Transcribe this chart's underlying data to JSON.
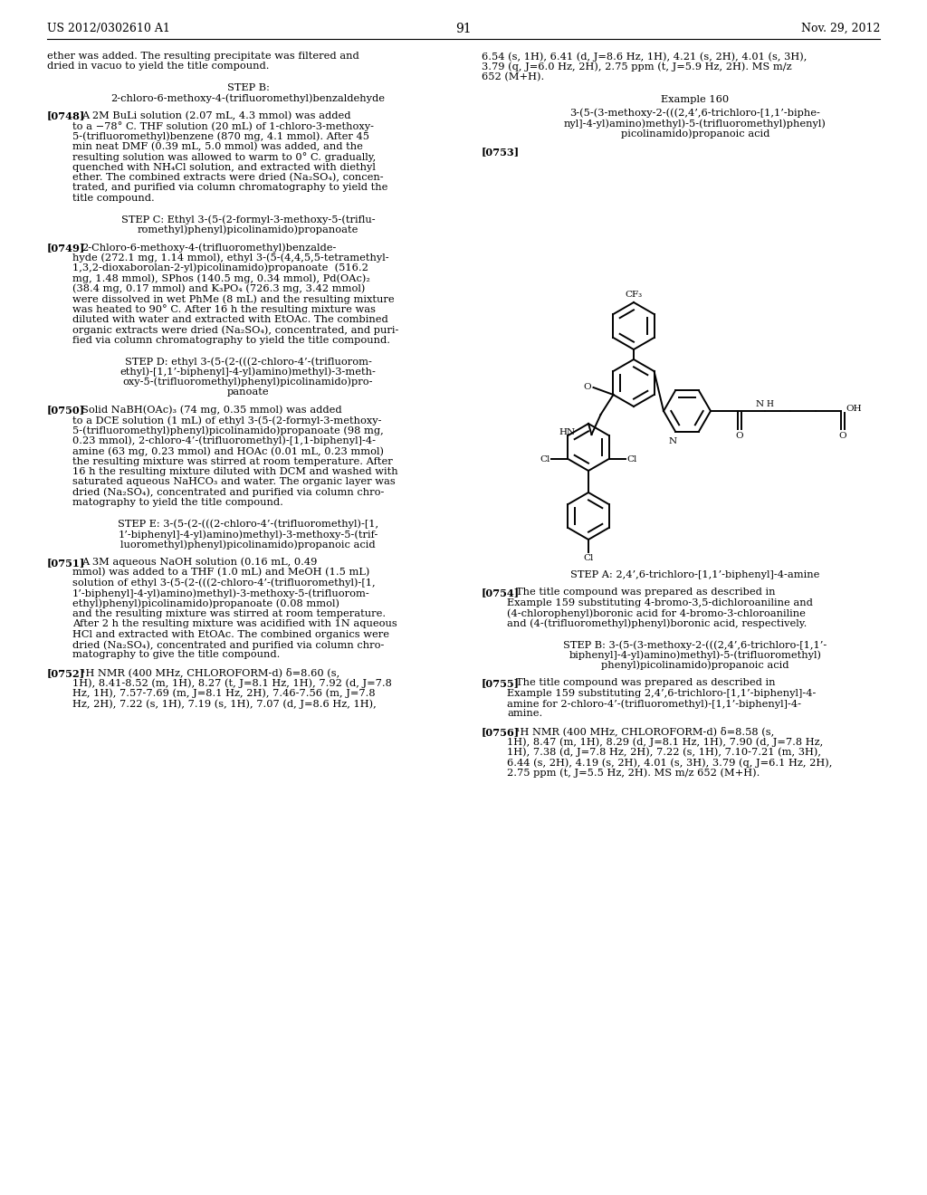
{
  "page_header_left": "US 2012/0302610 A1",
  "page_header_right": "Nov. 29, 2012",
  "page_number": "91",
  "background_color": "#ffffff"
}
